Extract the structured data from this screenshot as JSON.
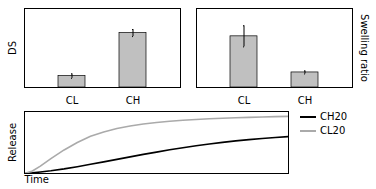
{
  "chart_data": [
    {
      "type": "bar",
      "categories": [
        "CL",
        "CH"
      ],
      "values": [
        0.13,
        0.62
      ],
      "errors": [
        0.025,
        0.04
      ],
      "color": "#c0c0c0",
      "ylabel": "DS",
      "ylim": [
        0,
        0.9
      ],
      "tick_labels": "x"
    },
    {
      "type": "bar",
      "categories": [
        "CL",
        "CH"
      ],
      "values": [
        0.68,
        0.2
      ],
      "errors": [
        0.14,
        0.02
      ],
      "color": "#c0c0c0",
      "ylabel": "Swelling ratio",
      "ylim": [
        0,
        1.05
      ],
      "tick_labels": "x"
    },
    {
      "type": "line",
      "x": [
        0,
        0.03,
        0.06,
        0.1,
        0.15,
        0.2,
        0.25,
        0.3,
        0.35,
        0.4,
        0.45,
        0.5,
        0.55,
        0.6,
        0.65,
        0.7,
        0.75,
        0.8,
        0.85,
        0.9,
        0.95,
        1.0
      ],
      "series": [
        {
          "name": "CH20",
          "color": "#000000",
          "values": [
            0.0,
            0.01,
            0.025,
            0.045,
            0.075,
            0.11,
            0.148,
            0.188,
            0.228,
            0.268,
            0.308,
            0.345,
            0.382,
            0.415,
            0.447,
            0.476,
            0.502,
            0.526,
            0.547,
            0.565,
            0.581,
            0.595
          ]
        },
        {
          "name": "CL20",
          "color": "#aaaaaa",
          "values": [
            0.0,
            0.04,
            0.12,
            0.24,
            0.38,
            0.5,
            0.6,
            0.67,
            0.725,
            0.765,
            0.798,
            0.822,
            0.842,
            0.858,
            0.871,
            0.882,
            0.891,
            0.899,
            0.906,
            0.912,
            0.917,
            0.921
          ]
        }
      ],
      "xlabel": "Time",
      "ylabel": "Release",
      "xlim": [
        0,
        1.0
      ],
      "ylim": [
        0,
        1.0
      ],
      "tick_labels": false,
      "legend": "upper right"
    }
  ]
}
